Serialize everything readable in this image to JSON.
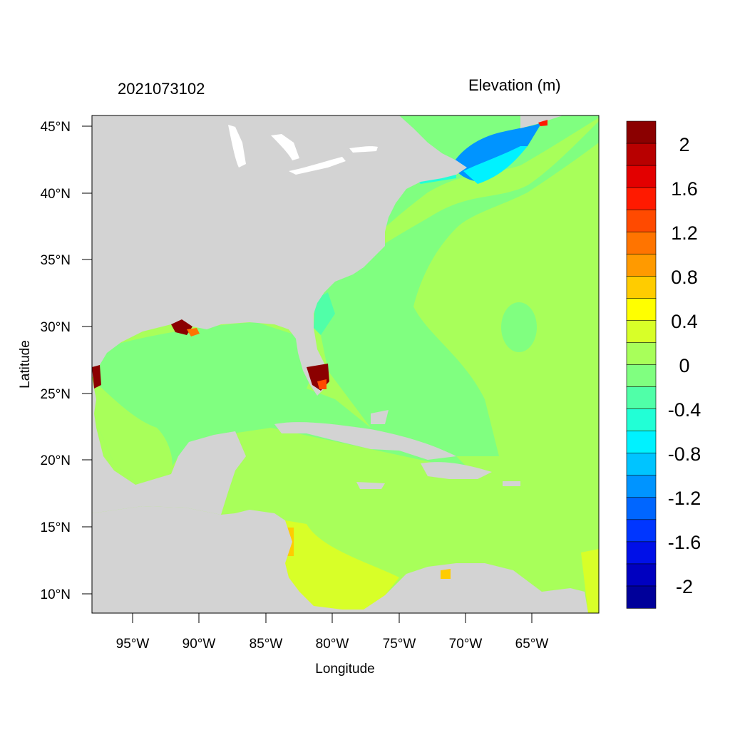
{
  "header": {
    "timestamp": "2021073102",
    "variable": "Elevation (m)"
  },
  "axes": {
    "xlabel": "Longitude",
    "ylabel": "Latitude",
    "x_ticks": [
      "95°W",
      "90°W",
      "85°W",
      "80°W",
      "75°W",
      "70°W",
      "65°W"
    ],
    "y_ticks": [
      "45°N",
      "40°N",
      "35°N",
      "30°N",
      "25°N",
      "20°N",
      "15°N",
      "10°N"
    ]
  },
  "colorbar": {
    "labels": [
      "2",
      "1.6",
      "1.2",
      "0.8",
      "0.4",
      "0",
      "-0.4",
      "-0.8",
      "-1.2",
      "-1.6",
      "-2"
    ],
    "colors": [
      "#8b0000",
      "#b80000",
      "#e30000",
      "#ff1a00",
      "#ff4a00",
      "#ff7400",
      "#ff9a00",
      "#ffcc00",
      "#ffff00",
      "#d8ff28",
      "#a8ff5a",
      "#80ff80",
      "#50ffa8",
      "#22ffd6",
      "#00f2ff",
      "#00c4ff",
      "#0094ff",
      "#0066ff",
      "#0036ff",
      "#0010e8",
      "#0000c0",
      "#00009a"
    ]
  },
  "colors": {
    "land": "#d3d3d3",
    "ocean_zero": "#80ff80",
    "ocean_pos": "#a8ff5a",
    "lakes": "#ffffff"
  }
}
